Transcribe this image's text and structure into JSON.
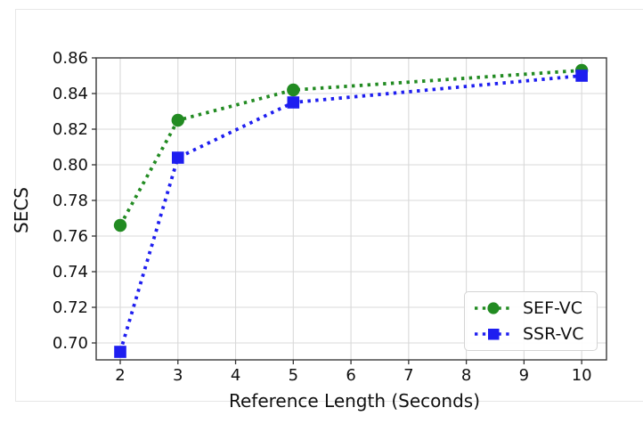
{
  "figure": {
    "xlabel": "Reference Length (Seconds)",
    "ylabel": "SECS"
  },
  "chart_data": {
    "type": "line",
    "title": "",
    "xlabel": "Reference Length (Seconds)",
    "ylabel": "SECS",
    "x": [
      2,
      3,
      5,
      10
    ],
    "series": [
      {
        "name": "SEF-VC",
        "color": "#228B22",
        "marker": "circle",
        "linestyle": "dotted",
        "values": [
          0.766,
          0.825,
          0.842,
          0.853
        ]
      },
      {
        "name": "SSR-VC",
        "color": "#1E1EF0",
        "marker": "square",
        "linestyle": "dotted",
        "values": [
          0.695,
          0.804,
          0.835,
          0.85
        ]
      }
    ],
    "xticks": [
      "2",
      "3",
      "4",
      "5",
      "6",
      "7",
      "8",
      "9",
      "10"
    ],
    "yticks": [
      "0.70",
      "0.72",
      "0.74",
      "0.76",
      "0.78",
      "0.80",
      "0.82",
      "0.84",
      "0.86"
    ],
    "xlim": [
      1.583,
      10.43
    ],
    "ylim": [
      0.6905,
      0.86
    ],
    "grid": true,
    "legend": {
      "position": "lower right"
    }
  },
  "colors": {
    "grid": "#d9d9d9",
    "spine": "#3a3a3a",
    "tick": "#333333",
    "text": "#111111",
    "frame": "#e7e7e7",
    "background": "#ffffff"
  }
}
